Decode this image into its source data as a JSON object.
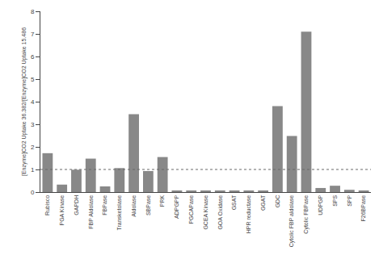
{
  "chart_data": {
    "type": "bar",
    "ylabel": "[Enzyme]CO2 Uptake 36.382/[Enzyme]CO2 Uptake 15.486",
    "categories": [
      "Rubisco",
      "PGA Kinase",
      "GAPDH",
      "FBP Aldolase",
      "FBPase",
      "Transketolase",
      "Aldolase",
      "SBPase",
      "PRK",
      "ADPGPP",
      "PGCAPase",
      "GCEA Kinase",
      "GOA Oxidase",
      "GSAT",
      "HPR reductase",
      "GGAT",
      "GDC",
      "Cytolic FBP aldolase",
      "Cytolic FBPase",
      "UDPGP",
      "SPS",
      "SPP",
      "F26BPase"
    ],
    "values": [
      1.72,
      0.33,
      0.99,
      1.48,
      0.25,
      1.06,
      3.45,
      0.93,
      1.55,
      0.04,
      0.04,
      0.04,
      0.04,
      0.04,
      0.04,
      0.04,
      3.8,
      2.48,
      7.1,
      0.18,
      0.28,
      0.1,
      0.04
    ],
    "color": "#888888",
    "ylim": [
      0,
      8
    ],
    "yticks": [
      0,
      1,
      2,
      3,
      4,
      5,
      6,
      7,
      8
    ],
    "hline": 1.0,
    "grid": false
  }
}
